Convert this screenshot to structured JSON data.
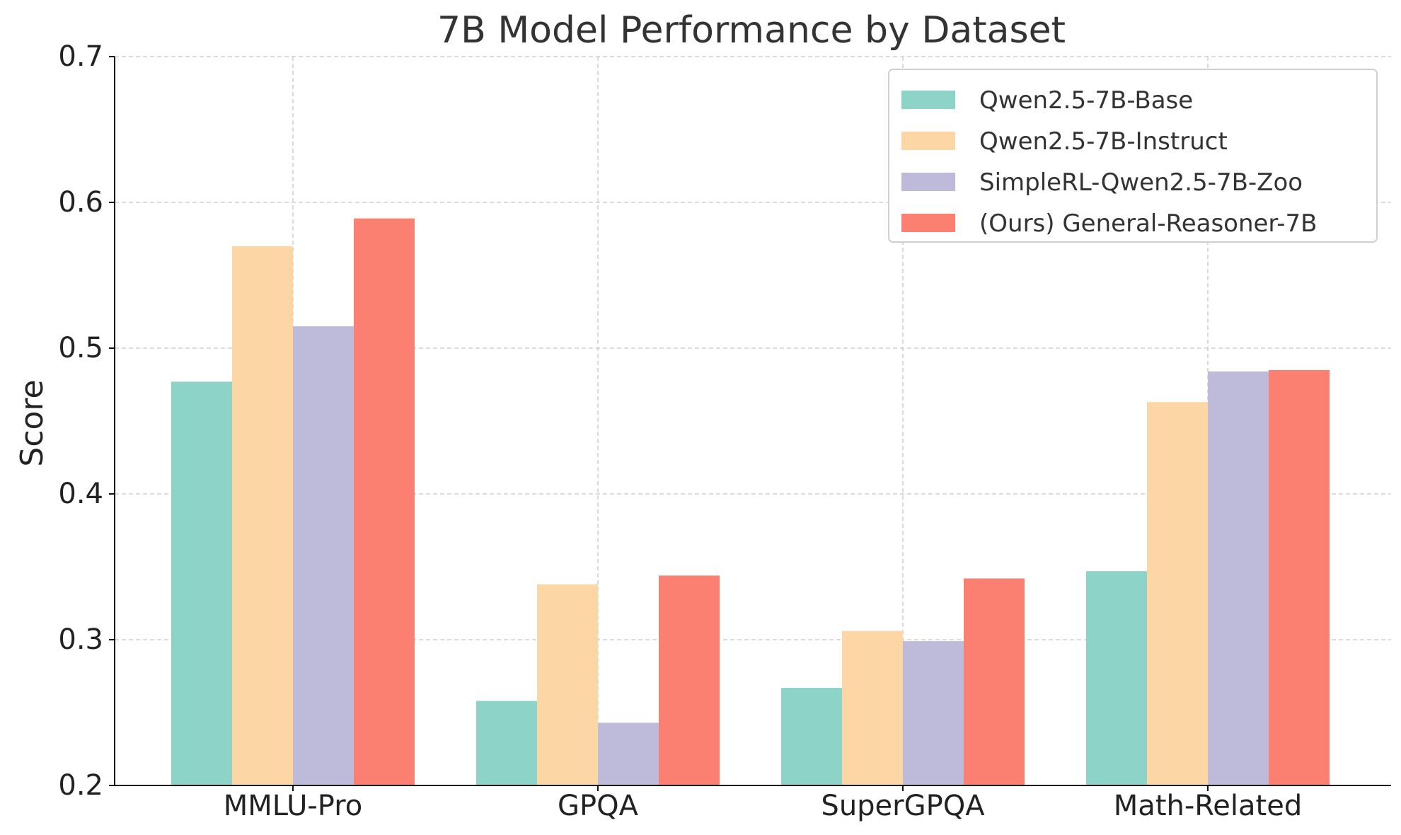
{
  "chart_data": {
    "type": "bar",
    "title": "7B Model Performance by Dataset",
    "xlabel": "",
    "ylabel": "Score",
    "ylim": [
      0.2,
      0.7
    ],
    "yticks": [
      "0.2",
      "0.3",
      "0.4",
      "0.5",
      "0.6",
      "0.7"
    ],
    "ytick_values": [
      0.2,
      0.3,
      0.4,
      0.5,
      0.6,
      0.7
    ],
    "categories": [
      "MMLU-Pro",
      "GPQA",
      "SuperGPQA",
      "Math-Related"
    ],
    "grid": true,
    "legend_position": "top-right",
    "series": [
      {
        "name": "Qwen2.5-7B-Base",
        "color": "#8dd3c7",
        "values": [
          0.477,
          0.258,
          0.267,
          0.347
        ]
      },
      {
        "name": "Qwen2.5-7B-Instruct",
        "color": "#fdd6a5",
        "values": [
          0.57,
          0.338,
          0.306,
          0.463
        ]
      },
      {
        "name": "SimpleRL-Qwen2.5-7B-Zoo",
        "color": "#bebada",
        "values": [
          0.515,
          0.243,
          0.299,
          0.484
        ]
      },
      {
        "name": "(Ours) General-Reasoner-7B",
        "color": "#fb8072",
        "values": [
          0.589,
          0.344,
          0.342,
          0.485
        ]
      }
    ]
  }
}
